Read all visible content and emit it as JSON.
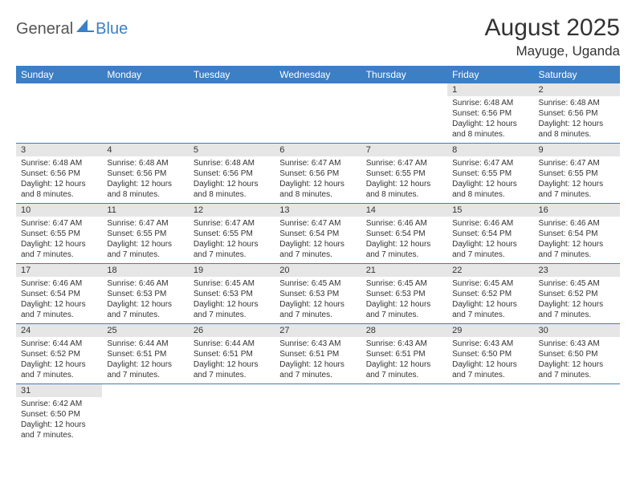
{
  "logo": {
    "general": "General",
    "blue": "Blue",
    "shape_color": "#3b7fc4"
  },
  "title": "August 2025",
  "location": "Mayuge, Uganda",
  "weekdays": [
    "Sunday",
    "Monday",
    "Tuesday",
    "Wednesday",
    "Thursday",
    "Friday",
    "Saturday"
  ],
  "header_bg": "#3b7fc4",
  "header_text_color": "#ffffff",
  "daynum_bg": "#e6e6e6",
  "border_color": "#3b7fc4",
  "rows": [
    [
      null,
      null,
      null,
      null,
      null,
      {
        "num": "1",
        "sunrise": "Sunrise: 6:48 AM",
        "sunset": "Sunset: 6:56 PM",
        "daylight1": "Daylight: 12 hours",
        "daylight2": "and 8 minutes."
      },
      {
        "num": "2",
        "sunrise": "Sunrise: 6:48 AM",
        "sunset": "Sunset: 6:56 PM",
        "daylight1": "Daylight: 12 hours",
        "daylight2": "and 8 minutes."
      }
    ],
    [
      {
        "num": "3",
        "sunrise": "Sunrise: 6:48 AM",
        "sunset": "Sunset: 6:56 PM",
        "daylight1": "Daylight: 12 hours",
        "daylight2": "and 8 minutes."
      },
      {
        "num": "4",
        "sunrise": "Sunrise: 6:48 AM",
        "sunset": "Sunset: 6:56 PM",
        "daylight1": "Daylight: 12 hours",
        "daylight2": "and 8 minutes."
      },
      {
        "num": "5",
        "sunrise": "Sunrise: 6:48 AM",
        "sunset": "Sunset: 6:56 PM",
        "daylight1": "Daylight: 12 hours",
        "daylight2": "and 8 minutes."
      },
      {
        "num": "6",
        "sunrise": "Sunrise: 6:47 AM",
        "sunset": "Sunset: 6:56 PM",
        "daylight1": "Daylight: 12 hours",
        "daylight2": "and 8 minutes."
      },
      {
        "num": "7",
        "sunrise": "Sunrise: 6:47 AM",
        "sunset": "Sunset: 6:55 PM",
        "daylight1": "Daylight: 12 hours",
        "daylight2": "and 8 minutes."
      },
      {
        "num": "8",
        "sunrise": "Sunrise: 6:47 AM",
        "sunset": "Sunset: 6:55 PM",
        "daylight1": "Daylight: 12 hours",
        "daylight2": "and 8 minutes."
      },
      {
        "num": "9",
        "sunrise": "Sunrise: 6:47 AM",
        "sunset": "Sunset: 6:55 PM",
        "daylight1": "Daylight: 12 hours",
        "daylight2": "and 7 minutes."
      }
    ],
    [
      {
        "num": "10",
        "sunrise": "Sunrise: 6:47 AM",
        "sunset": "Sunset: 6:55 PM",
        "daylight1": "Daylight: 12 hours",
        "daylight2": "and 7 minutes."
      },
      {
        "num": "11",
        "sunrise": "Sunrise: 6:47 AM",
        "sunset": "Sunset: 6:55 PM",
        "daylight1": "Daylight: 12 hours",
        "daylight2": "and 7 minutes."
      },
      {
        "num": "12",
        "sunrise": "Sunrise: 6:47 AM",
        "sunset": "Sunset: 6:55 PM",
        "daylight1": "Daylight: 12 hours",
        "daylight2": "and 7 minutes."
      },
      {
        "num": "13",
        "sunrise": "Sunrise: 6:47 AM",
        "sunset": "Sunset: 6:54 PM",
        "daylight1": "Daylight: 12 hours",
        "daylight2": "and 7 minutes."
      },
      {
        "num": "14",
        "sunrise": "Sunrise: 6:46 AM",
        "sunset": "Sunset: 6:54 PM",
        "daylight1": "Daylight: 12 hours",
        "daylight2": "and 7 minutes."
      },
      {
        "num": "15",
        "sunrise": "Sunrise: 6:46 AM",
        "sunset": "Sunset: 6:54 PM",
        "daylight1": "Daylight: 12 hours",
        "daylight2": "and 7 minutes."
      },
      {
        "num": "16",
        "sunrise": "Sunrise: 6:46 AM",
        "sunset": "Sunset: 6:54 PM",
        "daylight1": "Daylight: 12 hours",
        "daylight2": "and 7 minutes."
      }
    ],
    [
      {
        "num": "17",
        "sunrise": "Sunrise: 6:46 AM",
        "sunset": "Sunset: 6:54 PM",
        "daylight1": "Daylight: 12 hours",
        "daylight2": "and 7 minutes."
      },
      {
        "num": "18",
        "sunrise": "Sunrise: 6:46 AM",
        "sunset": "Sunset: 6:53 PM",
        "daylight1": "Daylight: 12 hours",
        "daylight2": "and 7 minutes."
      },
      {
        "num": "19",
        "sunrise": "Sunrise: 6:45 AM",
        "sunset": "Sunset: 6:53 PM",
        "daylight1": "Daylight: 12 hours",
        "daylight2": "and 7 minutes."
      },
      {
        "num": "20",
        "sunrise": "Sunrise: 6:45 AM",
        "sunset": "Sunset: 6:53 PM",
        "daylight1": "Daylight: 12 hours",
        "daylight2": "and 7 minutes."
      },
      {
        "num": "21",
        "sunrise": "Sunrise: 6:45 AM",
        "sunset": "Sunset: 6:53 PM",
        "daylight1": "Daylight: 12 hours",
        "daylight2": "and 7 minutes."
      },
      {
        "num": "22",
        "sunrise": "Sunrise: 6:45 AM",
        "sunset": "Sunset: 6:52 PM",
        "daylight1": "Daylight: 12 hours",
        "daylight2": "and 7 minutes."
      },
      {
        "num": "23",
        "sunrise": "Sunrise: 6:45 AM",
        "sunset": "Sunset: 6:52 PM",
        "daylight1": "Daylight: 12 hours",
        "daylight2": "and 7 minutes."
      }
    ],
    [
      {
        "num": "24",
        "sunrise": "Sunrise: 6:44 AM",
        "sunset": "Sunset: 6:52 PM",
        "daylight1": "Daylight: 12 hours",
        "daylight2": "and 7 minutes."
      },
      {
        "num": "25",
        "sunrise": "Sunrise: 6:44 AM",
        "sunset": "Sunset: 6:51 PM",
        "daylight1": "Daylight: 12 hours",
        "daylight2": "and 7 minutes."
      },
      {
        "num": "26",
        "sunrise": "Sunrise: 6:44 AM",
        "sunset": "Sunset: 6:51 PM",
        "daylight1": "Daylight: 12 hours",
        "daylight2": "and 7 minutes."
      },
      {
        "num": "27",
        "sunrise": "Sunrise: 6:43 AM",
        "sunset": "Sunset: 6:51 PM",
        "daylight1": "Daylight: 12 hours",
        "daylight2": "and 7 minutes."
      },
      {
        "num": "28",
        "sunrise": "Sunrise: 6:43 AM",
        "sunset": "Sunset: 6:51 PM",
        "daylight1": "Daylight: 12 hours",
        "daylight2": "and 7 minutes."
      },
      {
        "num": "29",
        "sunrise": "Sunrise: 6:43 AM",
        "sunset": "Sunset: 6:50 PM",
        "daylight1": "Daylight: 12 hours",
        "daylight2": "and 7 minutes."
      },
      {
        "num": "30",
        "sunrise": "Sunrise: 6:43 AM",
        "sunset": "Sunset: 6:50 PM",
        "daylight1": "Daylight: 12 hours",
        "daylight2": "and 7 minutes."
      }
    ],
    [
      {
        "num": "31",
        "sunrise": "Sunrise: 6:42 AM",
        "sunset": "Sunset: 6:50 PM",
        "daylight1": "Daylight: 12 hours",
        "daylight2": "and 7 minutes."
      },
      null,
      null,
      null,
      null,
      null,
      null
    ]
  ]
}
